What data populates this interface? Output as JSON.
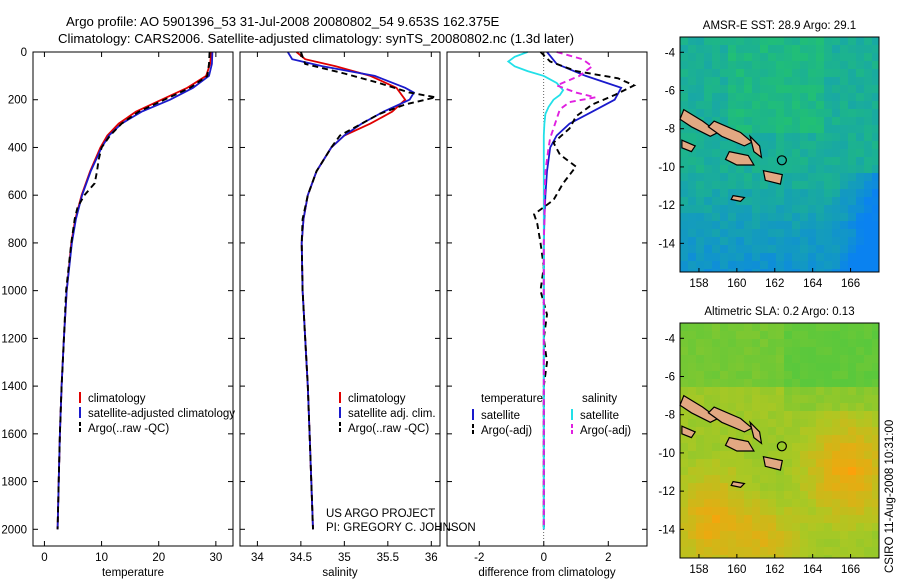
{
  "header": {
    "title_line1": "Argo profile: AO 5901396_53 31-Jul-2008 20080802_54 9.653S 162.375E",
    "title_line2": "Climatology: CARS2006. Satellite-adjusted climatology: synTS_20080802.nc (1.3d later)"
  },
  "colors": {
    "climatology": "#e00000",
    "satellite": "#1a1acc",
    "argo": "#000000",
    "sat_salinity": "#22e0e8",
    "argo_salinity": "#e020e0"
  },
  "depth_axis": {
    "ticks": [
      0,
      200,
      400,
      600,
      800,
      1000,
      1200,
      1400,
      1600,
      1800,
      2000
    ],
    "range": [
      0,
      2070
    ]
  },
  "annotations": {
    "project": "US ARGO PROJECT",
    "pi": "PI: GREGORY C. JOHNSON",
    "footer": "CSIRO 11-Aug-2008 10:31:00"
  },
  "chart_data": [
    {
      "type": "line",
      "id": "temperature",
      "xlabel": "temperature",
      "xlim": [
        -2,
        33
      ],
      "xticks": [
        0,
        10,
        20,
        30
      ],
      "legend": {
        "placement": "lower-right",
        "entries": [
          "climatology",
          "satellite-adjusted climatology",
          "Argo(..raw -QC)"
        ]
      },
      "series": [
        {
          "name": "climatology",
          "color": "#e00000",
          "depth": [
            0,
            50,
            100,
            150,
            200,
            250,
            300,
            350,
            400,
            500,
            600,
            700,
            800,
            1000,
            1200,
            1400,
            1600,
            1800,
            2000
          ],
          "values": [
            29.2,
            29.0,
            28.3,
            25,
            20.5,
            16,
            13,
            11,
            9.8,
            8,
            6.5,
            5.4,
            4.7,
            3.9,
            3.4,
            3.0,
            2.7,
            2.5,
            2.3
          ]
        },
        {
          "name": "satellite-adjusted climatology",
          "color": "#1a1acc",
          "depth": [
            0,
            50,
            100,
            150,
            200,
            250,
            300,
            350,
            400,
            500,
            600,
            700,
            800,
            1000,
            1200,
            1400,
            1600,
            1800,
            2000
          ],
          "values": [
            29.4,
            29.3,
            28.8,
            26,
            22,
            17,
            13.5,
            11.3,
            10,
            8.1,
            6.6,
            5.5,
            4.8,
            3.9,
            3.4,
            3.0,
            2.7,
            2.5,
            2.3
          ]
        },
        {
          "name": "Argo(..raw -QC)",
          "color": "#000000",
          "dashed": true,
          "depth": [
            0,
            50,
            100,
            150,
            200,
            250,
            300,
            350,
            400,
            450,
            500,
            550,
            600,
            650,
            700,
            750,
            800,
            1000,
            1200,
            1400,
            1600,
            1800,
            2000
          ],
          "values": [
            28.9,
            28.8,
            28.5,
            25.5,
            21,
            16.5,
            13.5,
            11.5,
            10,
            9.5,
            9.2,
            8.8,
            7,
            5.8,
            5.3,
            5.0,
            4.7,
            3.8,
            3.4,
            3.0,
            2.7,
            2.5,
            2.3
          ]
        }
      ]
    },
    {
      "type": "line",
      "id": "salinity",
      "xlabel": "salinity",
      "xlim": [
        33.8,
        36.1
      ],
      "xticks": [
        34,
        34.5,
        35,
        35.5,
        36
      ],
      "legend": {
        "placement": "lower-right",
        "entries": [
          "climatology",
          "satellite adj. clim.",
          "Argo(..raw -QC)"
        ]
      },
      "series": [
        {
          "name": "climatology",
          "color": "#e00000",
          "depth": [
            0,
            30,
            60,
            100,
            150,
            200,
            250,
            300,
            350,
            400,
            500,
            600,
            700,
            800,
            1000,
            1200,
            1400,
            1600,
            1800,
            2000
          ],
          "values": [
            34.45,
            34.55,
            34.9,
            35.3,
            35.6,
            35.7,
            35.55,
            35.3,
            35.0,
            34.85,
            34.68,
            34.58,
            34.53,
            34.51,
            34.52,
            34.55,
            34.58,
            34.6,
            34.62,
            34.64
          ]
        },
        {
          "name": "satellite adj. clim.",
          "color": "#1a1acc",
          "depth": [
            0,
            30,
            60,
            100,
            150,
            170,
            200,
            250,
            300,
            350,
            400,
            500,
            600,
            700,
            800,
            1000,
            1200,
            1400,
            1600,
            1800,
            2000
          ],
          "values": [
            34.35,
            34.4,
            34.75,
            35.35,
            35.7,
            35.8,
            35.75,
            35.45,
            35.2,
            35.0,
            34.85,
            34.68,
            34.58,
            34.53,
            34.51,
            34.52,
            34.55,
            34.58,
            34.6,
            34.62,
            34.64
          ]
        },
        {
          "name": "Argo(..raw -QC)",
          "color": "#000000",
          "dashed": true,
          "depth": [
            0,
            50,
            90,
            130,
            170,
            190,
            220,
            260,
            300,
            350,
            400,
            500,
            600,
            700,
            800,
            1000,
            1200,
            1400,
            1600,
            1800,
            2000
          ],
          "values": [
            34.5,
            34.55,
            35.0,
            35.4,
            35.75,
            36.05,
            35.7,
            35.4,
            35.2,
            34.95,
            34.85,
            34.68,
            34.58,
            34.52,
            34.51,
            34.52,
            34.55,
            34.58,
            34.6,
            34.62,
            34.64
          ]
        }
      ]
    },
    {
      "type": "line",
      "id": "difference",
      "xlabel": "difference from climatology",
      "xlim": [
        -3,
        3.2
      ],
      "xticks": [
        -2,
        0,
        2
      ],
      "legend": {
        "placement": "lower-center",
        "entries": [
          "temperature",
          "salinity",
          "satellite",
          "Argo(-adj)",
          "satellite",
          "Argo(-adj)"
        ]
      },
      "series": [
        {
          "name": "temperature satellite",
          "color": "#1a1acc",
          "depth": [
            0,
            50,
            100,
            150,
            200,
            250,
            300,
            350,
            400,
            500,
            600,
            700,
            800,
            1000,
            1500,
            2000
          ],
          "values": [
            0.1,
            0.4,
            1.3,
            2.4,
            2.2,
            1.5,
            0.8,
            0.4,
            0.2,
            0.1,
            0.05,
            0.02,
            0,
            0,
            0,
            0
          ]
        },
        {
          "name": "temperature Argo(-adj)",
          "color": "#000000",
          "dashed": true,
          "depth": [
            0,
            40,
            80,
            110,
            140,
            180,
            220,
            270,
            320,
            380,
            430,
            480,
            550,
            620,
            680,
            720,
            800,
            900,
            1000,
            1100,
            1200,
            1300,
            1400,
            1600,
            1800,
            2000
          ],
          "values": [
            -0.1,
            0.2,
            1.0,
            2.3,
            2.8,
            2.2,
            1.5,
            1.0,
            0.8,
            0.3,
            0.5,
            1.0,
            0.6,
            0.3,
            -0.3,
            -0.2,
            -0.1,
            0,
            -0.1,
            0.1,
            0,
            0.1,
            0,
            0,
            0,
            0
          ]
        },
        {
          "name": "salinity satellite",
          "color": "#22e0e8",
          "depth": [
            0,
            20,
            40,
            60,
            80,
            100,
            130,
            160,
            180,
            200,
            230,
            260,
            300,
            350,
            400,
            500,
            600,
            800,
            1000,
            2000
          ],
          "values": [
            -0.5,
            -0.9,
            -1.1,
            -0.9,
            -0.5,
            0,
            0.4,
            0.6,
            0.5,
            0.3,
            0.15,
            0.05,
            0.02,
            0,
            0,
            0,
            0,
            0,
            0,
            0
          ]
        },
        {
          "name": "salinity Argo(-adj)",
          "color": "#e020e0",
          "dashed": true,
          "depth": [
            0,
            30,
            60,
            100,
            140,
            170,
            190,
            210,
            240,
            280,
            320,
            360,
            400,
            450,
            500,
            600,
            700,
            800,
            1000,
            2000
          ],
          "values": [
            0.4,
            1.2,
            1.5,
            1.1,
            0.4,
            1.0,
            1.6,
            0.8,
            0.5,
            0.4,
            0.3,
            0.2,
            0.15,
            0.1,
            0.05,
            0.03,
            0.02,
            0,
            0,
            0
          ]
        }
      ]
    },
    {
      "type": "heatmap",
      "id": "sst_map",
      "title": "AMSR-E SST: 28.9 Argo: 29.1",
      "xticks": [
        158,
        160,
        162,
        164,
        166
      ],
      "yticks": [
        -4,
        -6,
        -8,
        -10,
        -12,
        -14
      ],
      "xlim": [
        157,
        167.5
      ],
      "ylim": [
        -15.5,
        -3.2
      ],
      "float_position": [
        162.375,
        -9.653
      ],
      "colormap": "green-teal-blue"
    },
    {
      "type": "heatmap",
      "id": "sla_map",
      "title": "Altimetric SLA: 0.2 Argo: 0.13",
      "xticks": [
        158,
        160,
        162,
        164,
        166
      ],
      "yticks": [
        -4,
        -6,
        -8,
        -10,
        -12,
        -14
      ],
      "xlim": [
        157,
        167.5
      ],
      "ylim": [
        -15.5,
        -3.2
      ],
      "float_position": [
        162.375,
        -9.653
      ],
      "colormap": "green-yellow-orange"
    }
  ]
}
